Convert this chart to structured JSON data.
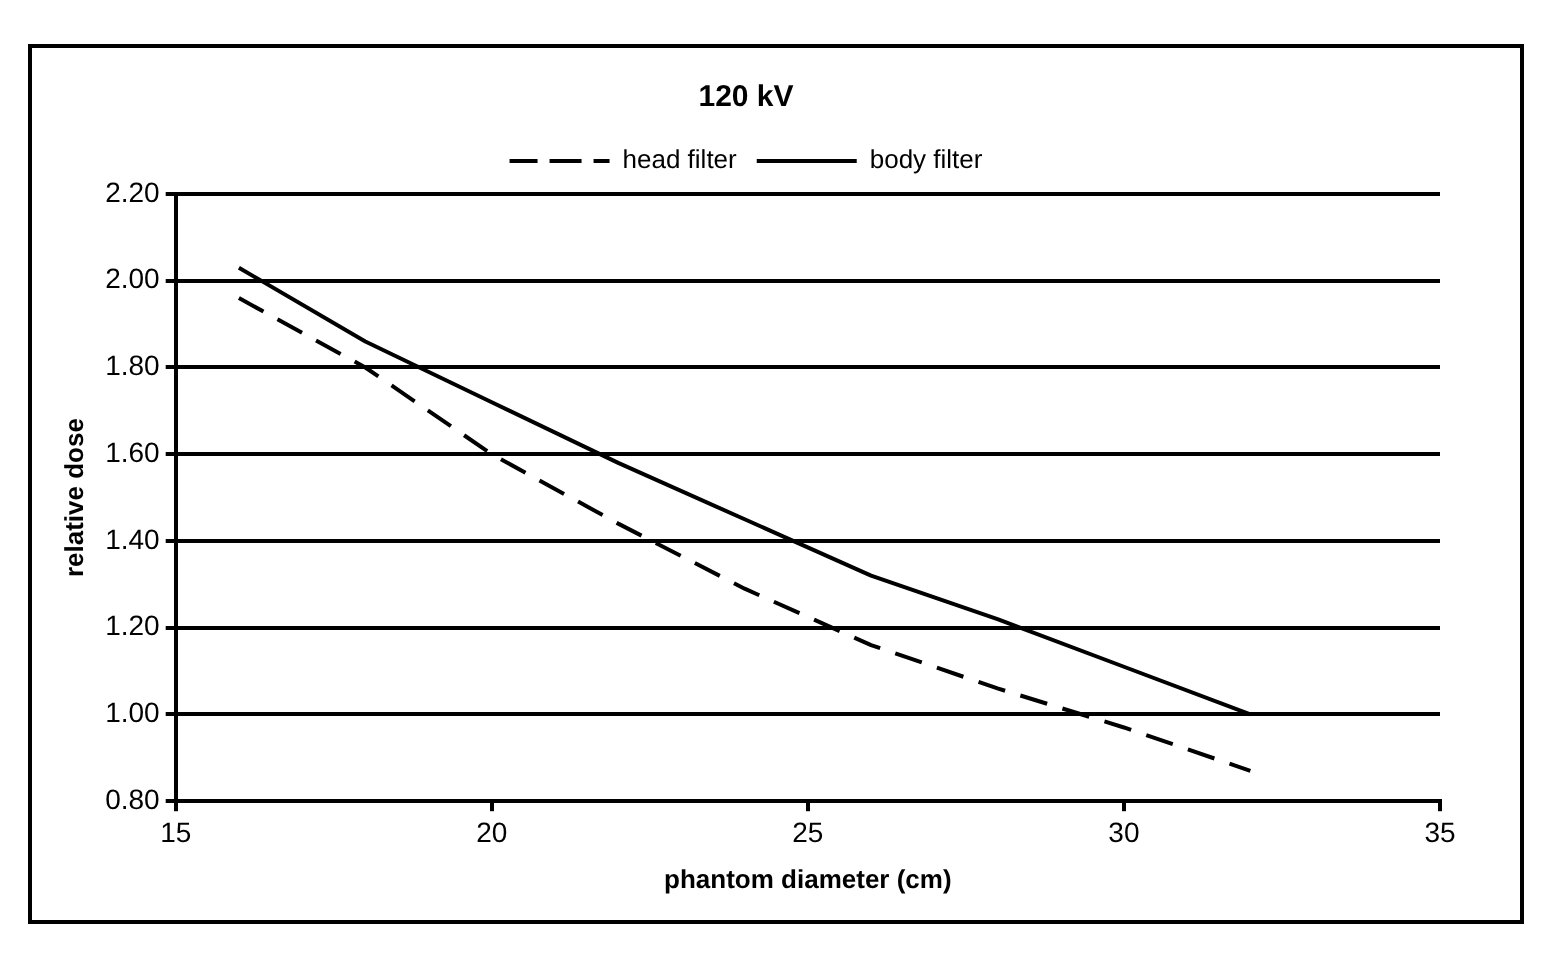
{
  "chart_data": {
    "type": "line",
    "title": "120 kV",
    "xlabel": "phantom diameter (cm)",
    "ylabel": "relative dose",
    "x": [
      16,
      18,
      20,
      22,
      24,
      26,
      28,
      30,
      32
    ],
    "series": [
      {
        "name": "head filter",
        "color": "#000000",
        "line_style": "dashed",
        "values": [
          1.96,
          1.8,
          1.6,
          1.44,
          1.29,
          1.16,
          1.06,
          0.97,
          0.87
        ]
      },
      {
        "name": "body filter",
        "color": "#000000",
        "line_style": "solid",
        "values": [
          2.03,
          1.86,
          1.72,
          1.58,
          1.45,
          1.32,
          1.22,
          1.11,
          1.0
        ]
      }
    ],
    "xlim": [
      15,
      35
    ],
    "xticks": [
      15,
      20,
      25,
      30,
      35
    ],
    "ylim": [
      0.8,
      2.2
    ],
    "yticks": [
      {
        "value": 0.8,
        "label": "0.80"
      },
      {
        "value": 1,
        "label": "1.00"
      },
      {
        "value": 1.2,
        "label": "1.20"
      },
      {
        "value": 1.4,
        "label": "1.40"
      },
      {
        "value": 1.6,
        "label": "1.60"
      },
      {
        "value": 1.8,
        "label": "1.80"
      },
      {
        "value": 2,
        "label": "2.00"
      },
      {
        "value": 2.2,
        "label": "2.20"
      }
    ],
    "grid": "y",
    "legend": "top",
    "marker": "none"
  }
}
